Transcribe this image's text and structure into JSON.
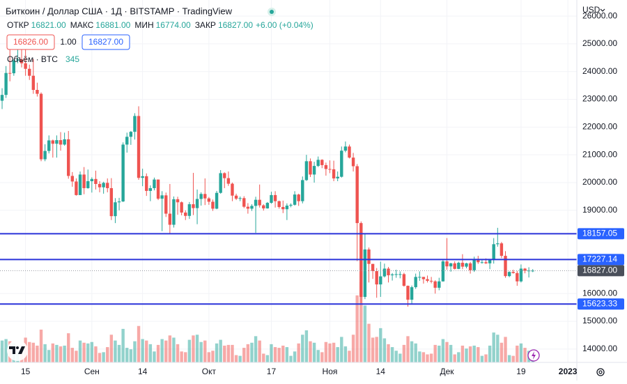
{
  "chart_data": {
    "type": "candlestick",
    "title": "Биткоин / Доллар США · 1Д · BITSTAMP · TradingView",
    "ohlc": [
      {
        "label": "ОТКР",
        "value": "16821.00"
      },
      {
        "label": "МАКС",
        "value": "16881.00"
      },
      {
        "label": "МИН",
        "value": "16774.00"
      },
      {
        "label": "ЗАКР",
        "value": "16827.00"
      }
    ],
    "change": "+6.00 (+0.04%)",
    "buttons": [
      "16826.00",
      "1.00",
      "16827.00"
    ],
    "volume_label": "Объём · BTC",
    "currency": "USD",
    "open": [
      22950,
      23160,
      23950,
      23940,
      24400,
      24440,
      24300,
      24100,
      23850,
      23340,
      23200,
      20840,
      21140,
      21520,
      21400,
      21530,
      21370,
      21560,
      20240,
      20040,
      19550,
      20290,
      19800,
      20050,
      20130,
      19950,
      19830,
      19990,
      19800,
      18790,
      19290,
      19320,
      21370,
      21650,
      21830,
      22400,
      20170,
      20230,
      19700,
      19800,
      20110,
      19420,
      19540,
      18880,
      18480,
      19400,
      19290,
      18920,
      18800,
      19220,
      19080,
      19410,
      19590,
      19430,
      19310,
      19060,
      19630,
      20340,
      20160,
      19960,
      19530,
      19420,
      19440,
      19130,
      19060,
      19160,
      19380,
      19180,
      19070,
      19270,
      19550,
      19330,
      19120,
      19040,
      19170,
      19200,
      19570,
      19330,
      20090,
      20770,
      20290,
      20600,
      20820,
      20630,
      20490,
      20480,
      20150,
      20210,
      21150,
      21300,
      20900,
      20590,
      18540,
      15880,
      17590,
      17070,
      16810,
      16330,
      16620,
      16900,
      16660,
      16690,
      16700,
      16700,
      16280,
      15780,
      16230,
      16600,
      16600,
      16520,
      16460,
      16440,
      16210,
      16440,
      17160,
      16980,
      17090,
      16890,
      17110,
      16970,
      17090,
      16840,
      17230,
      17130,
      17130,
      17090,
      17210,
      17780,
      17810,
      17360,
      16630,
      16780,
      16740,
      16440,
      16900,
      16820,
      16821
    ],
    "high": [
      23400,
      24200,
      24900,
      24450,
      24890,
      25050,
      25200,
      24250,
      24450,
      23600,
      23250,
      21380,
      21700,
      21550,
      21700,
      21820,
      21800,
      21860,
      20380,
      20150,
      20400,
      20560,
      20470,
      20190,
      20430,
      20050,
      20030,
      20150,
      20160,
      19440,
      19450,
      21450,
      21800,
      21860,
      22500,
      22750,
      20500,
      20330,
      19900,
      20180,
      20110,
      19690,
      19640,
      19950,
      19500,
      19490,
      19320,
      19000,
      19300,
      20350,
      19750,
      19650,
      20150,
      19480,
      19390,
      19700,
      20450,
      20370,
      20400,
      20000,
      19600,
      19500,
      19510,
      19260,
      19220,
      19490,
      19930,
      19220,
      19300,
      19670,
      19690,
      19350,
      19350,
      19250,
      19250,
      19690,
      19600,
      20220,
      21000,
      20870,
      20750,
      20940,
      20840,
      20720,
      20800,
      20790,
      20400,
      21300,
      21480,
      21370,
      21070,
      20670,
      18600,
      18150,
      17660,
      17070,
      16920,
      17150,
      17080,
      16960,
      16740,
      16860,
      16800,
      16750,
      16290,
      16290,
      16720,
      16800,
      16600,
      16650,
      16600,
      16480,
      16570,
      17250,
      18000,
      17110,
      17160,
      17150,
      17420,
      17110,
      17140,
      17330,
      17360,
      17220,
      17270,
      17240,
      18000,
      18370,
      17860,
      17530,
      16800,
      16860,
      16820,
      17050,
      16920,
      16950,
      16881
    ],
    "low": [
      22650,
      23050,
      23650,
      23850,
      24300,
      24150,
      23850,
      23700,
      23200,
      23100,
      20770,
      20770,
      21050,
      20900,
      20900,
      21150,
      21330,
      20140,
      19850,
      19530,
      19560,
      19580,
      19780,
      19640,
      19750,
      19650,
      19600,
      19650,
      18650,
      18540,
      19000,
      19300,
      21080,
      21360,
      21550,
      20100,
      19870,
      19520,
      19330,
      19720,
      19370,
      18250,
      18760,
      18150,
      18380,
      18840,
      18820,
      18650,
      18690,
      18830,
      18500,
      19170,
      19190,
      19200,
      18980,
      19040,
      19600,
      19800,
      19880,
      19330,
      19370,
      19330,
      19080,
      18880,
      18980,
      18190,
      19100,
      18990,
      19060,
      19240,
      19100,
      19060,
      18900,
      18650,
      19110,
      19170,
      19160,
      19250,
      20060,
      20200,
      20000,
      20560,
      20520,
      20250,
      20340,
      20050,
      20050,
      20180,
      21090,
      20870,
      20400,
      17170,
      15650,
      15800,
      16400,
      16530,
      15850,
      15880,
      16580,
      16400,
      16470,
      16570,
      16550,
      16250,
      15530,
      15620,
      16170,
      16460,
      16360,
      16400,
      16370,
      16000,
      16120,
      16430,
      16860,
      16790,
      16870,
      16880,
      16880,
      16910,
      16720,
      16780,
      17070,
      17080,
      17070,
      16880,
      17080,
      17690,
      17280,
      16570,
      16590,
      16720,
      16280,
      16400,
      16730,
      16580,
      16774
    ],
    "close": [
      23160,
      23950,
      23940,
      24400,
      24440,
      24300,
      24100,
      23850,
      23340,
      23200,
      20840,
      21140,
      21520,
      21400,
      21530,
      21370,
      21560,
      20240,
      20040,
      19550,
      20290,
      19800,
      20050,
      20130,
      19950,
      19830,
      19990,
      19800,
      18790,
      19290,
      19320,
      21370,
      21650,
      21830,
      22400,
      20170,
      20230,
      19700,
      19800,
      20110,
      19420,
      19540,
      18880,
      18480,
      19400,
      19290,
      18920,
      18800,
      19220,
      19080,
      19410,
      19590,
      19430,
      19310,
      19060,
      19630,
      20340,
      20160,
      19960,
      19530,
      19420,
      19440,
      19130,
      19060,
      19160,
      19380,
      19180,
      19070,
      19270,
      19550,
      19330,
      19120,
      19040,
      19170,
      19200,
      19570,
      19330,
      20090,
      20770,
      20290,
      20600,
      20820,
      20630,
      20490,
      20480,
      20150,
      20210,
      21150,
      21300,
      20900,
      20590,
      18540,
      15880,
      17590,
      17070,
      16810,
      16330,
      16620,
      16900,
      16660,
      16690,
      16700,
      16700,
      16280,
      15780,
      16230,
      16600,
      16600,
      16520,
      16460,
      16440,
      16210,
      16440,
      17160,
      16980,
      17090,
      16890,
      17110,
      16970,
      17090,
      16840,
      17230,
      17130,
      17130,
      17090,
      17210,
      17780,
      17810,
      17360,
      16630,
      16780,
      16740,
      16440,
      16900,
      16820,
      16830,
      16827
    ],
    "volume": [
      3000,
      3200,
      2900,
      2600,
      1500,
      1700,
      3400,
      2800,
      2700,
      2300,
      4500,
      2500,
      1700,
      2600,
      2400,
      2200,
      2300,
      4000,
      2000,
      1600,
      3000,
      2700,
      2600,
      2800,
      2200,
      1300,
      1400,
      2100,
      3800,
      3000,
      2400,
      4600,
      2000,
      1800,
      2900,
      5000,
      3200,
      3000,
      2500,
      1500,
      2400,
      3200,
      3000,
      3700,
      3400,
      2500,
      1500,
      1400,
      3100,
      3700,
      3800,
      2800,
      3000,
      1400,
      1600,
      2600,
      3100,
      2300,
      2400,
      2400,
      1000,
      900,
      2000,
      2500,
      2700,
      3600,
      3000,
      1200,
      1000,
      2500,
      2100,
      2000,
      2300,
      2100,
      900,
      1500,
      2600,
      3800,
      4400,
      2900,
      2700,
      1700,
      1400,
      2800,
      2600,
      2700,
      2100,
      3500,
      2200,
      1600,
      3800,
      9200,
      11000,
      7800,
      5300,
      3400,
      3500,
      4700,
      3300,
      2500,
      2100,
      1600,
      1200,
      2400,
      3600,
      2900,
      2600,
      1500,
      1400,
      1100,
      1200,
      2400,
      2300,
      3200,
      2800,
      2400,
      1100,
      1400,
      2300,
      1900,
      2200,
      2300,
      2100,
      900,
      1100,
      2300,
      4100,
      3800,
      2700,
      3500,
      1000,
      900,
      2300,
      2600,
      2000,
      1600,
      345
    ],
    "xlim": [
      -0.54,
      147.3
    ],
    "xticks": [
      {
        "value": 6,
        "label": "15"
      },
      {
        "value": 23,
        "label": "Сен"
      },
      {
        "value": 36,
        "label": "14"
      },
      {
        "value": 53,
        "label": "Окт"
      },
      {
        "value": 69,
        "label": "17"
      },
      {
        "value": 84,
        "label": "Ноя"
      },
      {
        "value": 97,
        "label": "14"
      },
      {
        "value": 114,
        "label": "Дек"
      },
      {
        "value": 133,
        "label": "19"
      },
      {
        "value": 145,
        "label": "2023"
      }
    ],
    "ylim": [
      13520,
      26580
    ],
    "yticks": [
      {
        "value": 26000,
        "label": "26000.00"
      },
      {
        "value": 25000,
        "label": "25000.00"
      },
      {
        "value": 24000,
        "label": "24000.00"
      },
      {
        "value": 23000,
        "label": "23000.00"
      },
      {
        "value": 22000,
        "label": "22000.00"
      },
      {
        "value": 21000,
        "label": "21000.00"
      },
      {
        "value": 20000,
        "label": "20000.00"
      },
      {
        "value": 19000,
        "label": "19000.00"
      },
      {
        "value": 16000,
        "label": "16000.00"
      },
      {
        "value": 15000,
        "label": "15000.00"
      },
      {
        "value": 14000,
        "label": "14000.00"
      }
    ],
    "levels": [
      18157.05,
      17227.14,
      15623.33
    ],
    "last_price": {
      "value": 16827,
      "label": "16827.00"
    },
    "grid": true,
    "colors": {
      "up": "#26a69a",
      "down": "#ef5350",
      "level": "#2a33d9",
      "level_label": "#2962ff",
      "last": "#4a4f5a"
    }
  }
}
